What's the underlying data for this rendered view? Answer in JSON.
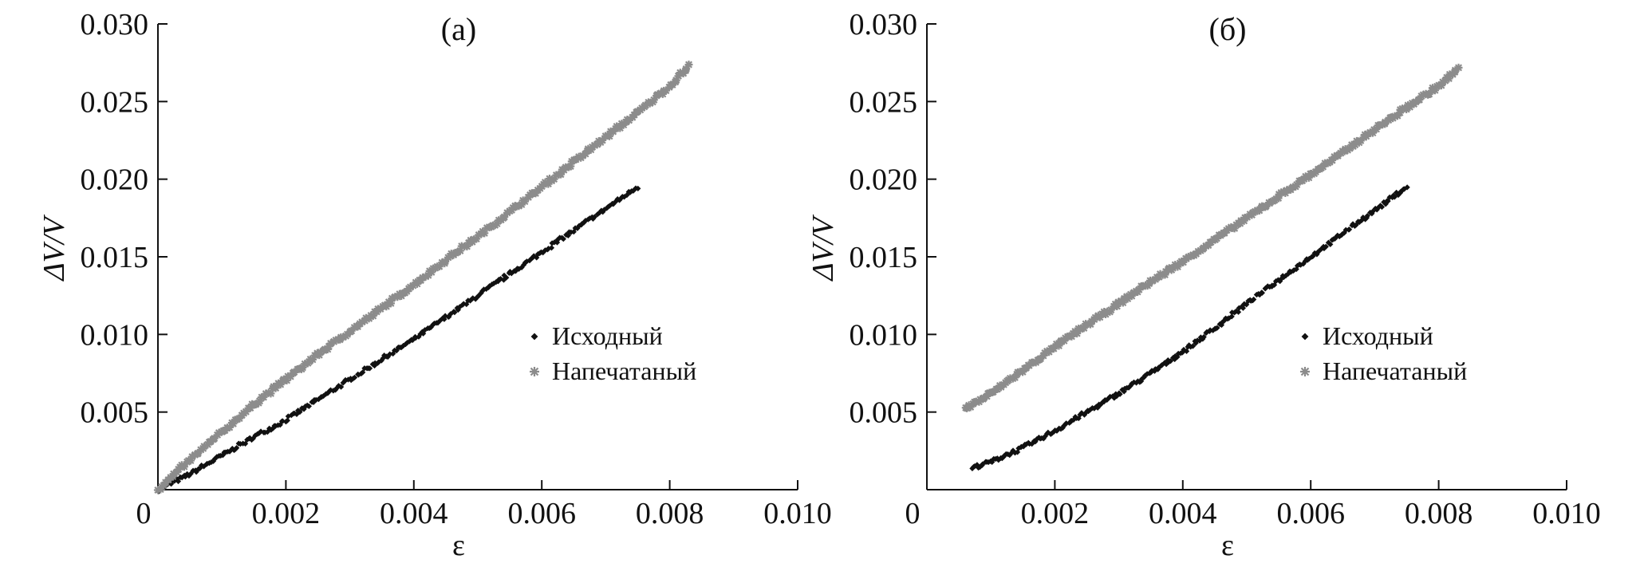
{
  "colors": {
    "series_original": "#111111",
    "series_printed": "#8c8c8c",
    "axis": "#111111"
  },
  "chart_data": [
    {
      "type": "scatter",
      "title": "(а)",
      "xlabel": "ε",
      "ylabel": "ΔV/V",
      "xlim": [
        0,
        0.01
      ],
      "ylim": [
        0,
        0.03
      ],
      "x_ticks": [
        0,
        0.002,
        0.004,
        0.006,
        0.008,
        0.01
      ],
      "x_tick_labels": [
        "0",
        "0.002",
        "0.004",
        "0.006",
        "0.008",
        "0.010"
      ],
      "y_ticks": [
        0.005,
        0.01,
        0.015,
        0.02,
        0.025,
        0.03
      ],
      "y_tick_labels": [
        "0.005",
        "0.010",
        "0.015",
        "0.020",
        "0.025",
        "0.030"
      ],
      "legend": {
        "position": "right",
        "entries": [
          "Исходный",
          "Напечатаный"
        ]
      },
      "series": [
        {
          "name": "Исходный",
          "marker": "diamond",
          "x": [
            0.0,
            0.0005,
            0.001,
            0.0015,
            0.002,
            0.0025,
            0.003,
            0.0035,
            0.004,
            0.0045,
            0.005,
            0.0055,
            0.006,
            0.0065,
            0.007,
            0.0075
          ],
          "y": [
            0.0,
            0.001,
            0.0022,
            0.0034,
            0.0045,
            0.0058,
            0.0071,
            0.0084,
            0.0097,
            0.0111,
            0.0125,
            0.0139,
            0.0153,
            0.0167,
            0.0181,
            0.0195
          ]
        },
        {
          "name": "Напечатаный",
          "marker": "star",
          "x": [
            0.0,
            0.0005,
            0.001,
            0.0015,
            0.002,
            0.0025,
            0.003,
            0.0035,
            0.004,
            0.0045,
            0.005,
            0.0055,
            0.006,
            0.0065,
            0.007,
            0.0075,
            0.008,
            0.0083
          ],
          "y": [
            0.0,
            0.0019,
            0.0037,
            0.0055,
            0.0071,
            0.0087,
            0.0102,
            0.0117,
            0.0132,
            0.0148,
            0.0163,
            0.0179,
            0.0195,
            0.0211,
            0.0227,
            0.0243,
            0.026,
            0.0273
          ]
        }
      ]
    },
    {
      "type": "scatter",
      "title": "(б)",
      "xlabel": "ε",
      "ylabel": "ΔV/V",
      "xlim": [
        0,
        0.01
      ],
      "ylim": [
        0,
        0.03
      ],
      "x_ticks": [
        0,
        0.002,
        0.004,
        0.006,
        0.008,
        0.01
      ],
      "x_tick_labels": [
        "0",
        "0.002",
        "0.004",
        "0.006",
        "0.008",
        "0.010"
      ],
      "y_ticks": [
        0.005,
        0.01,
        0.015,
        0.02,
        0.025,
        0.03
      ],
      "y_tick_labels": [
        "0.005",
        "0.010",
        "0.015",
        "0.020",
        "0.025",
        "0.030"
      ],
      "legend": {
        "position": "right",
        "entries": [
          "Исходный",
          "Напечатаный"
        ]
      },
      "series": [
        {
          "name": "Исходный",
          "marker": "diamond",
          "x": [
            0.0007,
            0.001,
            0.0015,
            0.002,
            0.0025,
            0.003,
            0.0035,
            0.004,
            0.0045,
            0.005,
            0.0055,
            0.006,
            0.0065,
            0.007,
            0.0075
          ],
          "y": [
            0.0014,
            0.0018,
            0.0027,
            0.0038,
            0.005,
            0.0062,
            0.0075,
            0.0089,
            0.0104,
            0.012,
            0.0135,
            0.015,
            0.0165,
            0.018,
            0.0195
          ]
        },
        {
          "name": "Напечатаный",
          "marker": "star",
          "x": [
            0.0006,
            0.001,
            0.0015,
            0.002,
            0.0025,
            0.003,
            0.0035,
            0.004,
            0.0045,
            0.005,
            0.0055,
            0.006,
            0.0065,
            0.007,
            0.0075,
            0.008,
            0.0083
          ],
          "y": [
            0.0052,
            0.0062,
            0.0077,
            0.0092,
            0.0106,
            0.012,
            0.0134,
            0.0147,
            0.0161,
            0.0175,
            0.0189,
            0.0203,
            0.0217,
            0.0232,
            0.0246,
            0.026,
            0.0271
          ]
        }
      ]
    }
  ]
}
